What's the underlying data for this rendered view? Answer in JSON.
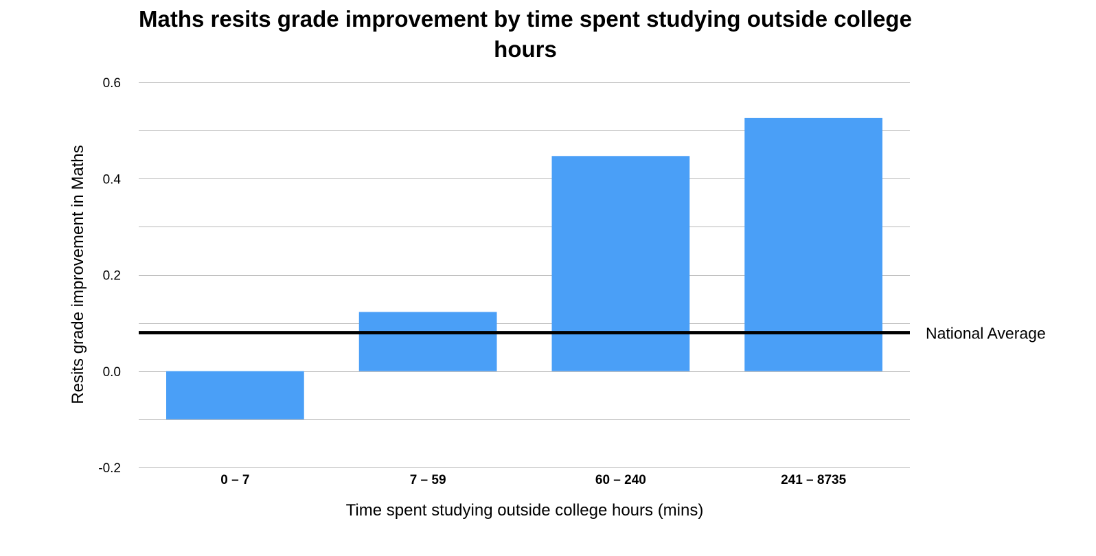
{
  "chart_data": {
    "type": "bar",
    "title": "Maths resits grade improvement by time spent studying outside college hours",
    "xlabel": "Time spent studying outside college hours (mins)",
    "ylabel": "Resits grade improvement in Maths",
    "categories": [
      "0 – 7",
      "7 – 59",
      "60 – 240",
      "241 – 8735"
    ],
    "values": [
      -0.1,
      0.123,
      0.447,
      0.526
    ],
    "ylim": [
      -0.2,
      0.6
    ],
    "yticks": [
      -0.2,
      0.0,
      0.2,
      0.4,
      0.6
    ],
    "ytick_labels": [
      "-0.2",
      "0.0",
      "0.2",
      "0.4",
      "0.6"
    ],
    "minor_gridlines": [
      -0.1,
      0.1,
      0.3,
      0.5
    ],
    "grid": true,
    "bar_color": "#4A9FF7",
    "reference_line": {
      "label": "National Average",
      "value": 0.08,
      "color": "#000000"
    }
  }
}
